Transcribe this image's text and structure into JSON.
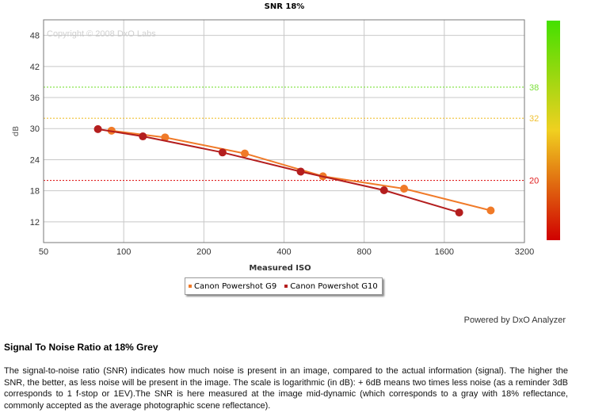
{
  "chart_data": {
    "type": "line",
    "title": "SNR 18%",
    "xlabel": "Measured ISO",
    "ylabel": "dB",
    "x_scale": "log2",
    "xlim": [
      50,
      3200
    ],
    "ylim": [
      8,
      51
    ],
    "x_ticks": [
      "50",
      "100",
      "200",
      "400",
      "800",
      "1600",
      "3200"
    ],
    "x_tick_values": [
      50,
      100,
      200,
      400,
      800,
      1600,
      3200
    ],
    "y_ticks": [
      12,
      18,
      24,
      30,
      36,
      42,
      48
    ],
    "grid": true,
    "watermark": "Copyright © 2008 DxO Labs",
    "reference_lines": [
      {
        "value": 38,
        "label": "38",
        "color": "#7ce03a"
      },
      {
        "value": 32,
        "label": "32",
        "color": "#f0c030"
      },
      {
        "value": 20,
        "label": "20",
        "color": "#e02020"
      }
    ],
    "series": [
      {
        "name": "Canon Powershot G9",
        "color": "#f07a28",
        "points": [
          [
            90,
            29.6
          ],
          [
            143,
            28.3
          ],
          [
            285,
            25.2
          ],
          [
            560,
            20.8
          ],
          [
            1130,
            18.4
          ],
          [
            2390,
            14.2
          ]
        ]
      },
      {
        "name": "Canon Powershot G10",
        "color": "#b41e1e",
        "points": [
          [
            80,
            29.9
          ],
          [
            118,
            28.5
          ],
          [
            235,
            25.4
          ],
          [
            462,
            21.7
          ],
          [
            950,
            18.1
          ],
          [
            1820,
            13.8
          ]
        ]
      }
    ],
    "legend_position": "bottom-center"
  },
  "footer": {
    "powered_by": "Powered by DxO Analyzer"
  },
  "section": {
    "title": "Signal To Noise Ratio at 18% Grey",
    "description": "The signal-to-noise ratio (SNR) indicates how much noise is present in an image, compared to the actual information (signal). The higher the SNR, the better, as less noise will be present in the image. The scale is logarithmic (in dB): + 6dB means two times less noise (as a reminder 3dB corresponds to 1 f-stop or 1EV).The SNR is here measured at the image mid-dynamic (which corresponds to a gray with 18% reflectance, commonly accepted as the average photographic scene reflectance)."
  },
  "colors": {
    "grid": "#c8c8c8",
    "plot_border": "#777777",
    "scale_bar_top": "#44e000",
    "scale_bar_mid": "#f0d020",
    "scale_bar_bottom": "#d00000"
  }
}
